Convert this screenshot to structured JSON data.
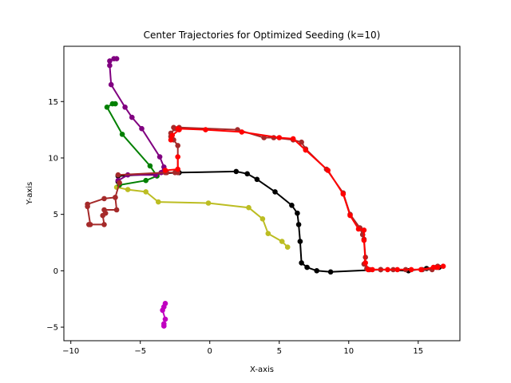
{
  "chart_data": {
    "type": "line",
    "title": "Center Trajectories for Optimized Seeding (k=10)",
    "xlabel": "X-axis",
    "ylabel": "Y-axis",
    "xlim": [
      -10.5,
      18.0
    ],
    "ylim": [
      -6.2,
      19.9
    ],
    "xticks": [
      -10,
      -5,
      0,
      5,
      10,
      15
    ],
    "yticks": [
      -5,
      0,
      5,
      10,
      15
    ],
    "grid": false,
    "legend": "none",
    "series": [
      {
        "color": "#000000",
        "points": [
          [
            -6.6,
            7.9
          ],
          [
            -6.6,
            8.4
          ],
          [
            -2.2,
            8.7
          ],
          [
            1.9,
            8.8
          ],
          [
            2.7,
            8.6
          ],
          [
            3.4,
            8.1
          ],
          [
            4.7,
            7.0
          ],
          [
            5.9,
            5.8
          ],
          [
            6.3,
            5.1
          ],
          [
            6.4,
            4.1
          ],
          [
            6.5,
            2.6
          ],
          [
            6.6,
            0.7
          ],
          [
            7.0,
            0.3
          ],
          [
            7.7,
            0.0
          ],
          [
            8.7,
            -0.1
          ],
          [
            12.3,
            0.1
          ],
          [
            14.3,
            0.0
          ],
          [
            15.6,
            0.2
          ],
          [
            16.5,
            0.3
          ]
        ]
      },
      {
        "color": "#bcbd22",
        "points": [
          [
            -6.7,
            7.4
          ],
          [
            -5.9,
            7.2
          ],
          [
            -4.6,
            7.0
          ],
          [
            -3.7,
            6.1
          ],
          [
            -0.1,
            6.0
          ],
          [
            2.8,
            5.6
          ],
          [
            3.8,
            4.6
          ],
          [
            4.2,
            3.3
          ],
          [
            5.2,
            2.6
          ],
          [
            5.6,
            2.1
          ]
        ]
      },
      {
        "color": "#008000",
        "points": [
          [
            -6.5,
            7.6
          ],
          [
            -4.6,
            8.0
          ],
          [
            -3.8,
            8.4
          ],
          [
            -4.3,
            9.3
          ],
          [
            -6.3,
            12.1
          ],
          [
            -7.4,
            14.5
          ],
          [
            -7.0,
            14.8
          ],
          [
            -6.8,
            14.8
          ]
        ]
      },
      {
        "color": "#800080",
        "points": [
          [
            -6.6,
            8.0
          ],
          [
            -5.9,
            8.5
          ],
          [
            -3.9,
            8.5
          ],
          [
            -3.5,
            8.7
          ],
          [
            -3.3,
            9.2
          ],
          [
            -3.6,
            10.1
          ],
          [
            -4.9,
            12.6
          ],
          [
            -5.6,
            13.6
          ],
          [
            -6.1,
            14.5
          ],
          [
            -7.1,
            16.5
          ],
          [
            -7.2,
            18.2
          ],
          [
            -7.2,
            18.6
          ],
          [
            -6.9,
            18.8
          ],
          [
            -6.7,
            18.8
          ]
        ]
      },
      {
        "color": "#a52a2a",
        "points": [
          [
            -6.6,
            8.5
          ],
          [
            -3.2,
            8.7
          ],
          [
            -3.1,
            8.7
          ],
          [
            -2.5,
            8.7
          ],
          [
            -2.3,
            8.7
          ],
          [
            -2.3,
            11.1
          ],
          [
            -2.6,
            11.6
          ],
          [
            -2.8,
            11.9
          ],
          [
            -2.8,
            12.2
          ],
          [
            -2.5,
            12.6
          ],
          [
            -2.6,
            12.7
          ],
          [
            -2.2,
            12.7
          ],
          [
            2.0,
            12.5
          ],
          [
            3.9,
            11.8
          ],
          [
            4.6,
            11.8
          ],
          [
            6.0,
            11.6
          ],
          [
            6.6,
            11.4
          ],
          [
            6.9,
            10.8
          ],
          [
            8.4,
            9.0
          ],
          [
            9.6,
            6.9
          ],
          [
            10.1,
            5.0
          ],
          [
            10.8,
            3.8
          ],
          [
            11.0,
            3.2
          ],
          [
            11.1,
            2.8
          ],
          [
            11.2,
            1.2
          ],
          [
            11.1,
            0.6
          ],
          [
            11.3,
            0.2
          ],
          [
            11.5,
            0.1
          ],
          [
            12.3,
            0.1
          ],
          [
            13.2,
            0.1
          ],
          [
            14.1,
            0.1
          ],
          [
            15.3,
            0.1
          ],
          [
            16.0,
            0.1
          ],
          [
            16.3,
            0.3
          ],
          [
            16.4,
            0.4
          ]
        ]
      },
      {
        "color": "#a52a2a",
        "points": [
          [
            -6.5,
            7.8
          ],
          [
            -6.8,
            6.5
          ],
          [
            -7.6,
            6.4
          ],
          [
            -8.8,
            5.9
          ],
          [
            -8.8,
            5.7
          ],
          [
            -8.6,
            4.1
          ],
          [
            -8.7,
            4.1
          ],
          [
            -7.6,
            4.1
          ],
          [
            -7.7,
            4.9
          ],
          [
            -7.5,
            5.1
          ],
          [
            -7.6,
            5.4
          ],
          [
            -6.7,
            5.4
          ],
          [
            -6.8,
            6.5
          ]
        ]
      },
      {
        "color": "#ff0000",
        "points": [
          [
            -2.8,
            11.6
          ],
          [
            -2.7,
            12.0
          ],
          [
            -2.2,
            12.5
          ],
          [
            -2.3,
            12.6
          ],
          [
            -0.3,
            12.5
          ],
          [
            2.3,
            12.3
          ],
          [
            5.0,
            11.8
          ],
          [
            6.0,
            11.7
          ],
          [
            6.9,
            10.7
          ],
          [
            8.5,
            8.9
          ],
          [
            9.6,
            6.8
          ],
          [
            10.1,
            4.9
          ],
          [
            10.7,
            3.7
          ],
          [
            11.1,
            3.6
          ],
          [
            11.1,
            2.7
          ],
          [
            11.2,
            0.7
          ],
          [
            11.4,
            0.1
          ],
          [
            11.7,
            0.1
          ],
          [
            12.8,
            0.1
          ],
          [
            13.5,
            0.1
          ],
          [
            14.5,
            0.1
          ],
          [
            15.2,
            0.1
          ],
          [
            16.1,
            0.3
          ],
          [
            16.4,
            0.3
          ],
          [
            16.8,
            0.4
          ]
        ]
      },
      {
        "color": "#ff0000",
        "points": [
          [
            -3.2,
            8.9
          ],
          [
            -2.3,
            9.0
          ],
          [
            -2.3,
            10.1
          ]
        ]
      },
      {
        "color": "#c000c0",
        "points": [
          [
            -3.2,
            -2.9
          ],
          [
            -3.3,
            -3.2
          ],
          [
            -3.4,
            -3.5
          ],
          [
            -3.2,
            -4.3
          ],
          [
            -3.3,
            -4.7
          ],
          [
            -3.3,
            -4.9
          ]
        ]
      }
    ]
  }
}
